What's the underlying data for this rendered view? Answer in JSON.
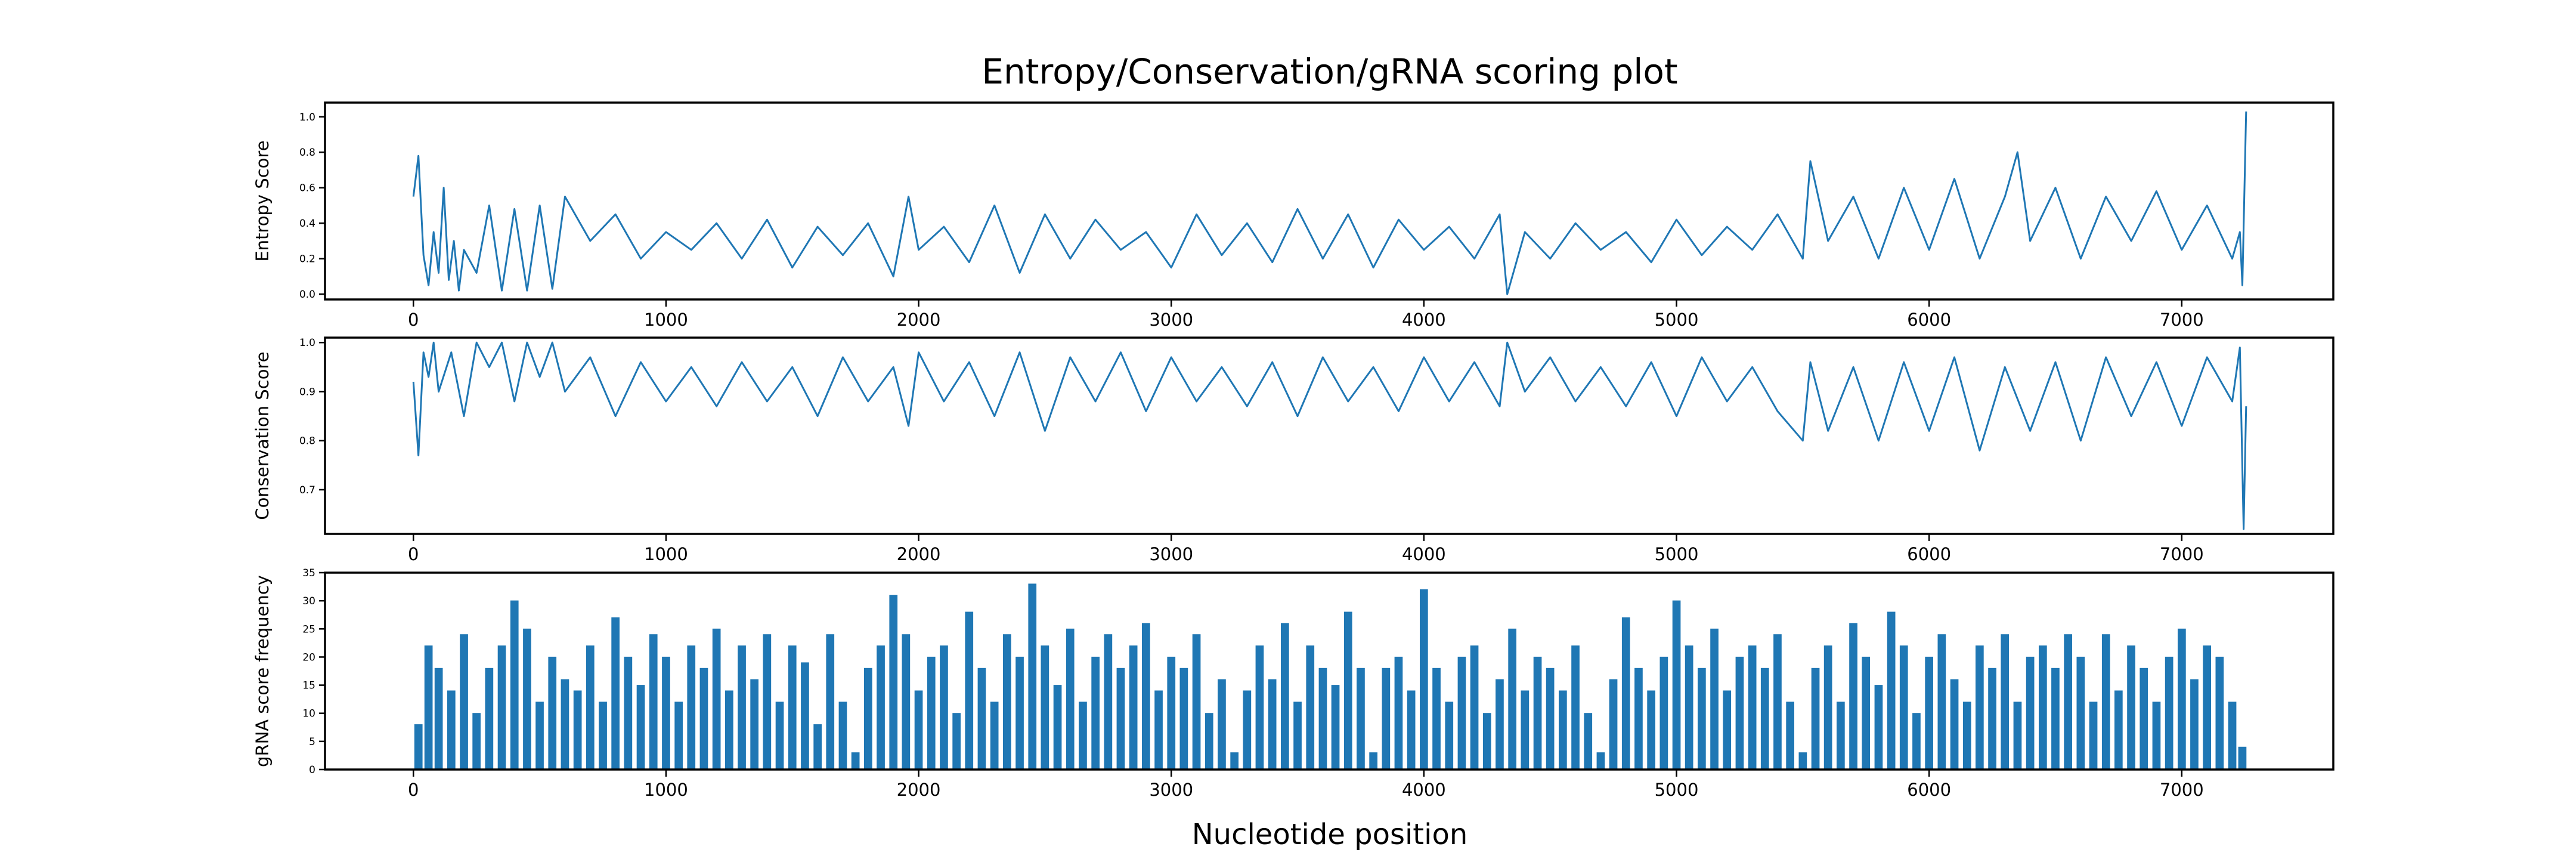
{
  "chart_data": {
    "title": "Entropy/Conservation/gRNA scoring plot",
    "xlabel": "Nucleotide position",
    "xlim": [
      -350,
      7600
    ],
    "xticks": [
      0,
      1000,
      2000,
      3000,
      4000,
      5000,
      6000,
      7000
    ],
    "colors": {
      "series": "#1f77b4"
    },
    "panels": [
      {
        "type": "line",
        "ylabel": "Entropy Score",
        "ylim": [
          -0.03,
          1.08
        ],
        "yticks": [
          0.0,
          0.2,
          0.4,
          0.6,
          0.8,
          1.0
        ],
        "ytick_labels": [
          "0.0",
          "0.2",
          "0.4",
          "0.6",
          "0.8",
          "1.0"
        ],
        "x": [
          0,
          20,
          40,
          60,
          80,
          100,
          120,
          140,
          160,
          180,
          200,
          250,
          300,
          350,
          400,
          450,
          500,
          550,
          600,
          700,
          800,
          900,
          1000,
          1100,
          1200,
          1300,
          1400,
          1500,
          1600,
          1700,
          1800,
          1900,
          1960,
          2000,
          2100,
          2200,
          2300,
          2400,
          2500,
          2600,
          2700,
          2800,
          2900,
          3000,
          3100,
          3200,
          3300,
          3400,
          3500,
          3600,
          3700,
          3800,
          3900,
          4000,
          4100,
          4200,
          4300,
          4330,
          4400,
          4500,
          4600,
          4700,
          4800,
          4900,
          5000,
          5100,
          5200,
          5300,
          5400,
          5500,
          5530,
          5600,
          5700,
          5800,
          5900,
          6000,
          6100,
          6200,
          6300,
          6350,
          6400,
          6500,
          6600,
          6700,
          6800,
          6900,
          7000,
          7100,
          7200,
          7230,
          7240,
          7255
        ],
        "values": [
          0.55,
          0.78,
          0.22,
          0.05,
          0.35,
          0.12,
          0.6,
          0.08,
          0.3,
          0.02,
          0.25,
          0.12,
          0.5,
          0.02,
          0.48,
          0.02,
          0.5,
          0.03,
          0.55,
          0.3,
          0.45,
          0.2,
          0.35,
          0.25,
          0.4,
          0.2,
          0.42,
          0.15,
          0.38,
          0.22,
          0.4,
          0.1,
          0.55,
          0.25,
          0.38,
          0.18,
          0.5,
          0.12,
          0.45,
          0.2,
          0.42,
          0.25,
          0.35,
          0.15,
          0.45,
          0.22,
          0.4,
          0.18,
          0.48,
          0.2,
          0.45,
          0.15,
          0.42,
          0.25,
          0.38,
          0.2,
          0.45,
          0.0,
          0.35,
          0.2,
          0.4,
          0.25,
          0.35,
          0.18,
          0.42,
          0.22,
          0.38,
          0.25,
          0.45,
          0.2,
          0.75,
          0.3,
          0.55,
          0.2,
          0.6,
          0.25,
          0.65,
          0.2,
          0.55,
          0.8,
          0.3,
          0.6,
          0.2,
          0.55,
          0.3,
          0.58,
          0.25,
          0.5,
          0.2,
          0.35,
          0.05,
          1.03
        ]
      },
      {
        "type": "line",
        "ylabel": "Conservation Score",
        "ylim": [
          0.61,
          1.01
        ],
        "yticks": [
          0.7,
          0.8,
          0.9,
          1.0
        ],
        "ytick_labels": [
          "0.7",
          "0.8",
          "0.9",
          "1.0"
        ],
        "x": [
          0,
          20,
          40,
          60,
          80,
          100,
          150,
          200,
          250,
          300,
          350,
          400,
          450,
          500,
          550,
          600,
          700,
          800,
          900,
          1000,
          1100,
          1200,
          1300,
          1400,
          1500,
          1600,
          1700,
          1800,
          1900,
          1960,
          2000,
          2100,
          2200,
          2300,
          2400,
          2500,
          2600,
          2700,
          2800,
          2900,
          3000,
          3100,
          3200,
          3300,
          3400,
          3500,
          3600,
          3700,
          3800,
          3900,
          4000,
          4100,
          4200,
          4300,
          4330,
          4400,
          4500,
          4600,
          4700,
          4800,
          4900,
          5000,
          5100,
          5200,
          5300,
          5400,
          5500,
          5530,
          5600,
          5700,
          5800,
          5900,
          6000,
          6100,
          6200,
          6300,
          6400,
          6500,
          6600,
          6700,
          6800,
          6900,
          7000,
          7100,
          7200,
          7230,
          7245,
          7255
        ],
        "values": [
          0.92,
          0.77,
          0.98,
          0.93,
          1.0,
          0.9,
          0.98,
          0.85,
          1.0,
          0.95,
          1.0,
          0.88,
          1.0,
          0.93,
          1.0,
          0.9,
          0.97,
          0.85,
          0.96,
          0.88,
          0.95,
          0.87,
          0.96,
          0.88,
          0.95,
          0.85,
          0.97,
          0.88,
          0.95,
          0.83,
          0.98,
          0.88,
          0.96,
          0.85,
          0.98,
          0.82,
          0.97,
          0.88,
          0.98,
          0.86,
          0.97,
          0.88,
          0.95,
          0.87,
          0.96,
          0.85,
          0.97,
          0.88,
          0.95,
          0.86,
          0.97,
          0.88,
          0.96,
          0.87,
          1.0,
          0.9,
          0.97,
          0.88,
          0.95,
          0.87,
          0.96,
          0.85,
          0.97,
          0.88,
          0.95,
          0.86,
          0.8,
          0.96,
          0.82,
          0.95,
          0.8,
          0.96,
          0.82,
          0.97,
          0.78,
          0.95,
          0.82,
          0.96,
          0.8,
          0.97,
          0.85,
          0.96,
          0.83,
          0.97,
          0.88,
          0.99,
          0.62,
          0.87
        ]
      },
      {
        "type": "bar",
        "ylabel": "gRNA score frequency",
        "ylim": [
          0,
          35
        ],
        "yticks": [
          0,
          5,
          10,
          15,
          20,
          25,
          30,
          35
        ],
        "ytick_labels": [
          "0",
          "5",
          "10",
          "15",
          "20",
          "25",
          "30",
          "35"
        ],
        "x": [
          20,
          60,
          100,
          150,
          200,
          250,
          300,
          350,
          400,
          450,
          500,
          550,
          600,
          650,
          700,
          750,
          800,
          850,
          900,
          950,
          1000,
          1050,
          1100,
          1150,
          1200,
          1250,
          1300,
          1350,
          1400,
          1450,
          1500,
          1550,
          1600,
          1650,
          1700,
          1750,
          1800,
          1850,
          1900,
          1950,
          2000,
          2050,
          2100,
          2150,
          2200,
          2250,
          2300,
          2350,
          2400,
          2450,
          2500,
          2550,
          2600,
          2650,
          2700,
          2750,
          2800,
          2850,
          2900,
          2950,
          3000,
          3050,
          3100,
          3150,
          3200,
          3250,
          3300,
          3350,
          3400,
          3450,
          3500,
          3550,
          3600,
          3650,
          3700,
          3750,
          3800,
          3850,
          3900,
          3950,
          4000,
          4050,
          4100,
          4150,
          4200,
          4250,
          4300,
          4350,
          4400,
          4450,
          4500,
          4550,
          4600,
          4650,
          4700,
          4750,
          4800,
          4850,
          4900,
          4950,
          5000,
          5050,
          5100,
          5150,
          5200,
          5250,
          5300,
          5350,
          5400,
          5450,
          5500,
          5550,
          5600,
          5650,
          5700,
          5750,
          5800,
          5850,
          5900,
          5950,
          6000,
          6050,
          6100,
          6150,
          6200,
          6250,
          6300,
          6350,
          6400,
          6450,
          6500,
          6550,
          6600,
          6650,
          6700,
          6750,
          6800,
          6850,
          6900,
          6950,
          7000,
          7050,
          7100,
          7150,
          7200,
          7240
        ],
        "values": [
          8,
          22,
          18,
          14,
          24,
          10,
          18,
          22,
          30,
          25,
          12,
          20,
          16,
          14,
          22,
          12,
          27,
          20,
          15,
          24,
          20,
          12,
          22,
          18,
          25,
          14,
          22,
          16,
          24,
          12,
          22,
          19,
          8,
          24,
          12,
          3,
          18,
          22,
          31,
          24,
          14,
          20,
          22,
          10,
          28,
          18,
          12,
          24,
          20,
          33,
          22,
          15,
          25,
          12,
          20,
          24,
          18,
          22,
          26,
          14,
          20,
          18,
          24,
          10,
          16,
          3,
          14,
          22,
          16,
          26,
          12,
          22,
          18,
          15,
          28,
          18,
          3,
          18,
          20,
          14,
          32,
          18,
          12,
          20,
          22,
          10,
          16,
          25,
          14,
          20,
          18,
          14,
          22,
          10,
          3,
          16,
          27,
          18,
          14,
          20,
          30,
          22,
          18,
          25,
          14,
          20,
          22,
          18,
          24,
          12,
          3,
          18,
          22,
          12,
          26,
          20,
          15,
          28,
          22,
          10,
          20,
          24,
          16,
          12,
          22,
          18,
          24,
          12,
          20,
          22,
          18,
          24,
          20,
          12,
          24,
          14,
          22,
          18,
          12,
          20,
          25,
          16,
          22,
          20,
          12,
          4
        ]
      }
    ]
  }
}
